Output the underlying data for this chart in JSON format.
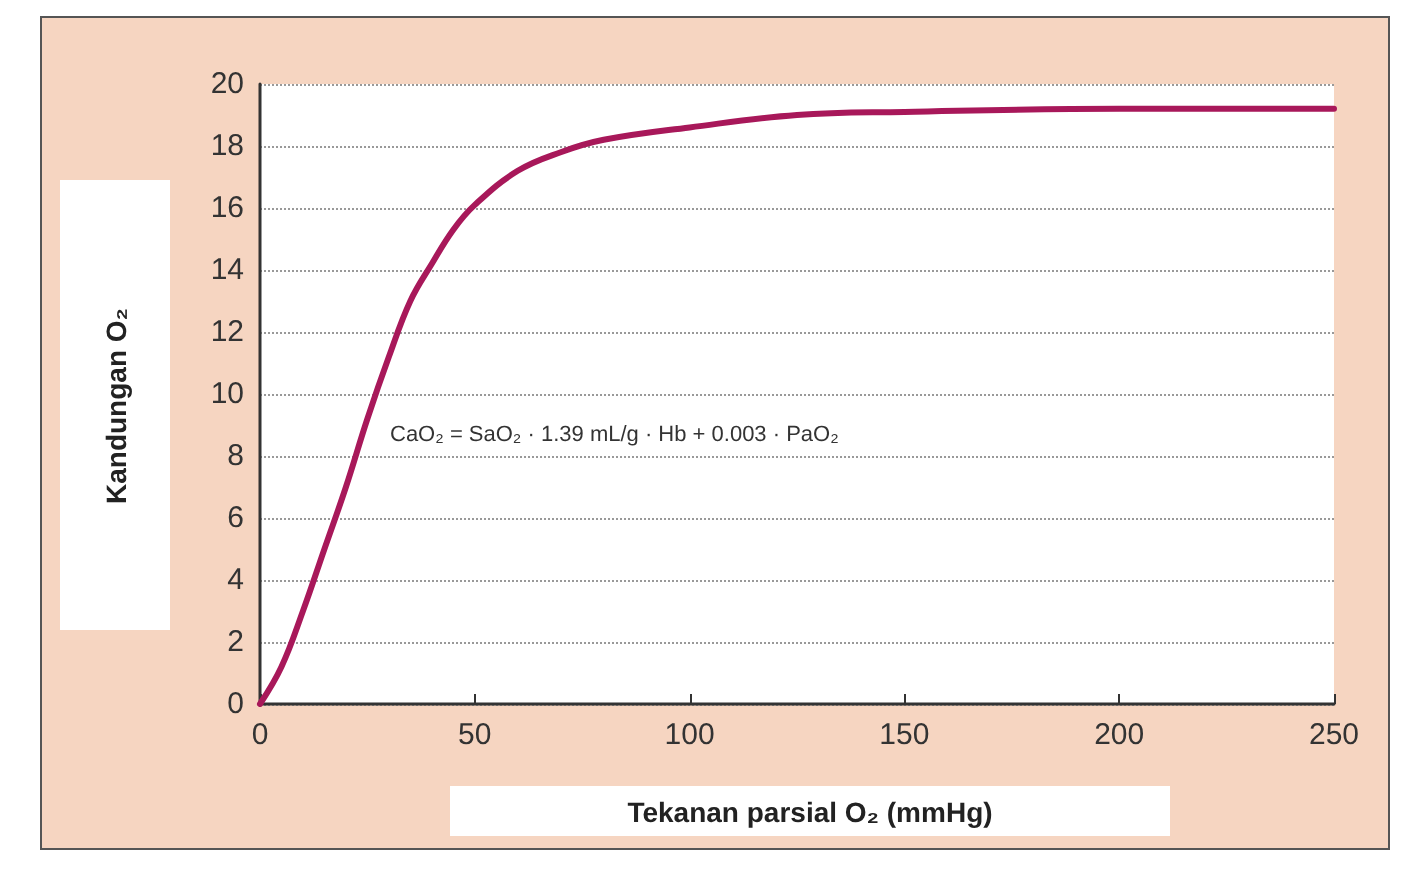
{
  "chart_data": {
    "type": "line",
    "xlabel": "Tekanan parsial O₂ (mmHg)",
    "ylabel": "Kandungan O₂",
    "annotations": [
      "CaO₂ = SaO₂ · 1.39 mL/g · Hb + 0.003 · PaO₂"
    ],
    "x": [
      0,
      5,
      10,
      15,
      20,
      25,
      30,
      35,
      40,
      45,
      50,
      60,
      70,
      80,
      100,
      125,
      150,
      200,
      250
    ],
    "series": [
      {
        "color": "#a8185a",
        "values": [
          0,
          1.2,
          3,
          5,
          7,
          9.2,
          11.2,
          13,
          14.2,
          15.3,
          16.1,
          17.2,
          17.8,
          18.2,
          18.6,
          19,
          19.1,
          19.2,
          19.2
        ]
      }
    ],
    "xlim": [
      0,
      250
    ],
    "xticks": [
      0,
      50,
      100,
      150,
      200,
      250
    ],
    "ylim": [
      0,
      20
    ],
    "yticks": [
      0,
      2,
      4,
      6,
      8,
      10,
      12,
      14,
      16,
      18,
      20
    ],
    "grid": "y",
    "marker": "none",
    "line_style": "solid"
  }
}
